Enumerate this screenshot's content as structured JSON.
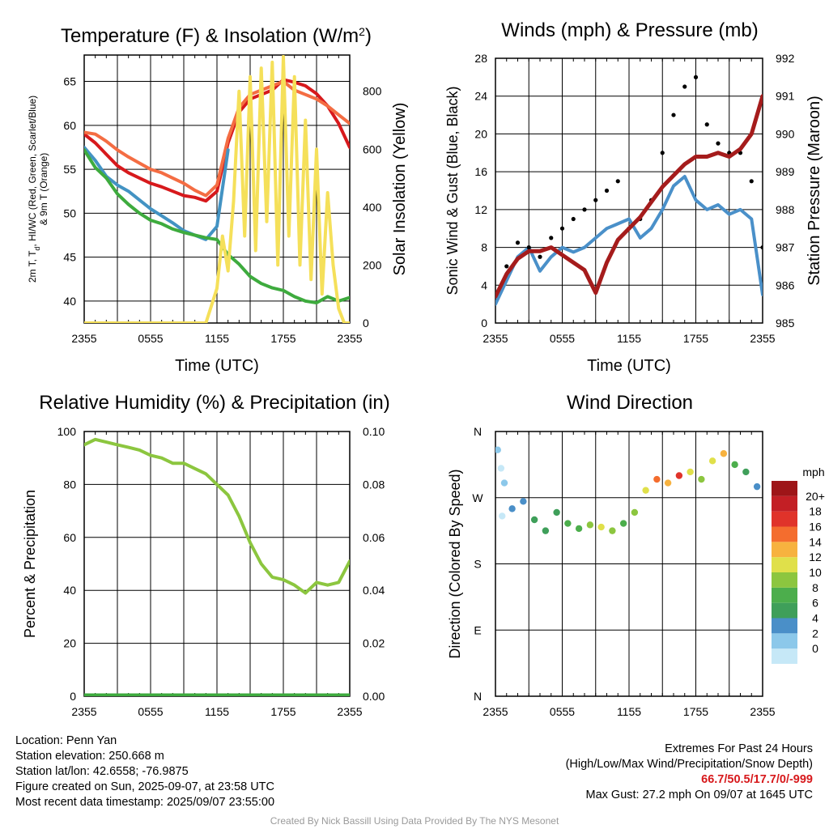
{
  "chart_data": [
    {
      "type": "line",
      "title": "Temperature (F) & Insolation (W/m²)",
      "xlabel": "Time (UTC)",
      "ylabel": "2m T, Td, HI/WC (Red, Green, Scarlet/Blue) & 9m T (Orange)",
      "y2label": "Solar Insolation (Yellow)",
      "x_ticks": [
        "2355",
        "0555",
        "1155",
        "1755",
        "2355"
      ],
      "xlim": [
        0,
        24
      ],
      "ylim": [
        37.5,
        68
      ],
      "y_ticks": [
        40,
        45,
        50,
        55,
        60,
        65
      ],
      "y2lim": [
        0,
        925
      ],
      "y2_ticks": [
        0,
        200,
        400,
        600,
        800
      ],
      "grid": true,
      "series": [
        {
          "color": "#d7191c",
          "axis": "left",
          "x": [
            0,
            1,
            2,
            3,
            4,
            5,
            6,
            7,
            8,
            9,
            10,
            11,
            12,
            13,
            14,
            15,
            16,
            17,
            18,
            19,
            20,
            21,
            22,
            23,
            24
          ],
          "y": [
            59,
            58,
            56.7,
            55.4,
            54.6,
            54,
            53.4,
            53,
            52.5,
            52,
            51.8,
            51.4,
            52.5,
            58,
            61.5,
            63,
            63.5,
            64,
            65.2,
            64.9,
            64.5,
            63.6,
            62.2,
            60.2,
            57.5
          ]
        },
        {
          "color": "#f46d43",
          "axis": "left",
          "x": [
            0,
            1,
            2,
            3,
            4,
            5,
            6,
            7,
            8,
            9,
            10,
            11,
            12,
            13,
            14,
            15,
            16,
            17,
            18,
            19,
            20,
            21,
            22,
            23,
            24
          ],
          "y": [
            59.2,
            59,
            58.2,
            57.2,
            56.4,
            55.7,
            55,
            54.6,
            54,
            53.4,
            52.6,
            52,
            53.2,
            58.5,
            62,
            63.5,
            64,
            64.5,
            65,
            64,
            63.5,
            63,
            62.2,
            61.2,
            60.2
          ]
        },
        {
          "color": "#4393c3",
          "axis": "left",
          "x": [
            0,
            1,
            2,
            3,
            4,
            5,
            6,
            7,
            8,
            9,
            10,
            11,
            12,
            13
          ],
          "y": [
            57.5,
            56,
            54.2,
            53.2,
            52.5,
            51.5,
            50.5,
            49.7,
            48.9,
            48,
            47.5,
            47,
            48.5,
            57.2
          ]
        },
        {
          "color": "#3eab3e",
          "axis": "left",
          "x": [
            0,
            1,
            2,
            3,
            4,
            5,
            6,
            7,
            8,
            9,
            10,
            11,
            12,
            13,
            14,
            15,
            16,
            17,
            18,
            19,
            20,
            21,
            22,
            23,
            24
          ],
          "y": [
            57.2,
            55.2,
            54,
            52.2,
            51,
            50,
            49.2,
            48.8,
            48.2,
            47.8,
            47.5,
            47.2,
            47,
            45.3,
            44.2,
            42.8,
            42,
            41.5,
            41.2,
            40.5,
            40,
            39.8,
            40.5,
            40,
            40.4
          ]
        },
        {
          "color": "#f5e05a",
          "axis": "right",
          "x": [
            0,
            11,
            11.5,
            12,
            12.5,
            13,
            13.5,
            14,
            14.5,
            15,
            15.5,
            16,
            16.5,
            17,
            17.5,
            18,
            18.5,
            19,
            19.5,
            20,
            20.5,
            21,
            21.5,
            22,
            22.5,
            23,
            23.5,
            24
          ],
          "y": [
            0,
            0,
            60,
            120,
            300,
            180,
            420,
            800,
            300,
            850,
            250,
            880,
            350,
            900,
            200,
            920,
            300,
            850,
            200,
            700,
            150,
            600,
            100,
            450,
            200,
            50,
            0,
            0
          ]
        }
      ]
    },
    {
      "type": "line",
      "title": "Winds (mph) & Pressure (mb)",
      "xlabel": "Time (UTC)",
      "ylabel": "Sonic Wind & Gust (Blue, Black)",
      "y2label": "Station Pressure (Maroon)",
      "x_ticks": [
        "2355",
        "0555",
        "1155",
        "1755",
        "2355"
      ],
      "xlim": [
        0,
        24
      ],
      "ylim": [
        0,
        28
      ],
      "y_ticks": [
        0,
        4,
        8,
        12,
        16,
        20,
        24,
        28
      ],
      "y2lim": [
        985,
        992
      ],
      "y2_ticks": [
        985,
        986,
        987,
        988,
        989,
        990,
        991,
        992
      ],
      "grid": true,
      "series": [
        {
          "color": "#4a90c9",
          "axis": "left",
          "x": [
            0,
            1,
            2,
            3,
            4,
            5,
            6,
            7,
            8,
            9,
            10,
            11,
            12,
            13,
            14,
            15,
            16,
            17,
            18,
            19,
            20,
            21,
            22,
            23,
            24
          ],
          "y": [
            2,
            4.5,
            7,
            8,
            5.5,
            7,
            8,
            7.5,
            8,
            9,
            10,
            10.5,
            11,
            9,
            10,
            12,
            14.5,
            15.5,
            13,
            12,
            12.5,
            11.5,
            12,
            11,
            3
          ]
        },
        {
          "color": "#000000",
          "axis": "left",
          "type": "scatter",
          "x": [
            0,
            1,
            2,
            3,
            4,
            5,
            6,
            7,
            8,
            9,
            10,
            11,
            12,
            13,
            14,
            15,
            16,
            17,
            18,
            19,
            20,
            21,
            22,
            23,
            24
          ],
          "y": [
            3,
            6,
            8.5,
            8,
            7,
            9,
            10,
            11,
            12,
            13,
            14,
            15,
            10,
            11,
            13,
            18,
            22,
            25,
            26,
            21,
            19,
            18,
            18,
            15,
            8
          ]
        },
        {
          "color": "#a51c1c",
          "axis": "right",
          "x": [
            0,
            1,
            2,
            3,
            4,
            5,
            6,
            7,
            8,
            9,
            10,
            11,
            12,
            13,
            14,
            15,
            16,
            17,
            18,
            19,
            20,
            21,
            22,
            23,
            24
          ],
          "y": [
            985.7,
            986.3,
            986.7,
            986.9,
            986.9,
            987,
            986.8,
            986.6,
            986.4,
            985.8,
            986.6,
            987.2,
            987.5,
            987.8,
            988.2,
            988.6,
            988.9,
            989.2,
            989.4,
            989.4,
            989.5,
            989.4,
            989.6,
            990,
            991
          ]
        }
      ]
    },
    {
      "type": "line",
      "title": "Relative Humidity (%) & Precipitation (in)",
      "ylabel": "Percent & Precipitation",
      "x_ticks": [
        "2355",
        "0555",
        "1155",
        "1755",
        "2355"
      ],
      "xlim": [
        0,
        24
      ],
      "ylim": [
        0,
        100
      ],
      "y_ticks": [
        0,
        20,
        40,
        60,
        80,
        100
      ],
      "y2lim": [
        0,
        0.1
      ],
      "y2_ticks": [
        "0.00",
        "0.02",
        "0.04",
        "0.06",
        "0.08",
        "0.10"
      ],
      "grid": true,
      "series": [
        {
          "color": "#8cc63f",
          "axis": "left",
          "x": [
            0,
            1,
            2,
            3,
            4,
            5,
            6,
            7,
            8,
            9,
            10,
            11,
            12,
            13,
            14,
            15,
            16,
            17,
            18,
            19,
            20,
            21,
            22,
            23,
            24
          ],
          "y": [
            95,
            97,
            96,
            95,
            94,
            93,
            91,
            90,
            88,
            88,
            86,
            84,
            80,
            76,
            68,
            58,
            50,
            45,
            44,
            42,
            39,
            43,
            42,
            43,
            51
          ]
        },
        {
          "color": "#3eab3e",
          "axis": "right",
          "x": [
            0,
            24
          ],
          "y": [
            0,
            0
          ]
        }
      ]
    },
    {
      "type": "scatter",
      "title": "Wind Direction",
      "ylabel": "Direction (Colored By Speed)",
      "x_ticks": [
        "2355",
        "0555",
        "1155",
        "1755",
        "2355"
      ],
      "xlim": [
        0,
        24
      ],
      "y_ticks": [
        "N",
        "E",
        "S",
        "W",
        "N"
      ],
      "ylim": [
        0,
        360
      ],
      "grid": true,
      "colorbar": {
        "title": "mph",
        "labels": [
          "0",
          "2",
          "4",
          "6",
          "8",
          "10",
          "12",
          "14",
          "16",
          "18",
          "20+"
        ],
        "colors": [
          "#c6e8f7",
          "#8cc8ea",
          "#4a8fc8",
          "#3f9f5a",
          "#4cae4c",
          "#8cc63f",
          "#e0e04a",
          "#f7b23f",
          "#f46d2e",
          "#e0332a",
          "#c31f25",
          "#9e1518"
        ]
      },
      "points": [
        {
          "x": 0.2,
          "y": 335,
          "s": 2
        },
        {
          "x": 0.5,
          "y": 310,
          "s": 1
        },
        {
          "x": 0.6,
          "y": 245,
          "s": 1
        },
        {
          "x": 0.8,
          "y": 290,
          "s": 2
        },
        {
          "x": 1.5,
          "y": 255,
          "s": 4
        },
        {
          "x": 2.5,
          "y": 265,
          "s": 5
        },
        {
          "x": 3.5,
          "y": 240,
          "s": 6
        },
        {
          "x": 4.5,
          "y": 225,
          "s": 7
        },
        {
          "x": 5.5,
          "y": 250,
          "s": 7
        },
        {
          "x": 6.5,
          "y": 235,
          "s": 8
        },
        {
          "x": 7.5,
          "y": 228,
          "s": 9
        },
        {
          "x": 8.5,
          "y": 233,
          "s": 10
        },
        {
          "x": 9.5,
          "y": 230,
          "s": 12
        },
        {
          "x": 10.5,
          "y": 225,
          "s": 11
        },
        {
          "x": 11.5,
          "y": 235,
          "s": 9
        },
        {
          "x": 12.5,
          "y": 250,
          "s": 10
        },
        {
          "x": 13.5,
          "y": 280,
          "s": 13
        },
        {
          "x": 14.5,
          "y": 295,
          "s": 17
        },
        {
          "x": 15.5,
          "y": 290,
          "s": 15
        },
        {
          "x": 16.5,
          "y": 300,
          "s": 19
        },
        {
          "x": 17.5,
          "y": 305,
          "s": 13
        },
        {
          "x": 18.5,
          "y": 295,
          "s": 10
        },
        {
          "x": 19.5,
          "y": 320,
          "s": 12
        },
        {
          "x": 20.5,
          "y": 330,
          "s": 14
        },
        {
          "x": 21.5,
          "y": 315,
          "s": 9
        },
        {
          "x": 22.5,
          "y": 305,
          "s": 6
        },
        {
          "x": 23.5,
          "y": 285,
          "s": 4
        }
      ]
    }
  ],
  "info": {
    "location": "Location: Penn Yan",
    "elevation": "Station elevation: 250.668 m",
    "latlon": "Station lat/lon: 42.6558; -76.9875",
    "created": "Figure created on Sun, 2025-09-07, at 23:58 UTC",
    "recent": "Most recent data timestamp: 2025/09/07 23:55:00"
  },
  "extremes": {
    "heading": "Extremes For Past 24 Hours",
    "legend": "(High/Low/Max Wind/Precipitation/Snow Depth)",
    "values": "66.7/50.5/17.7/0/-999",
    "gust": "Max Gust: 27.2 mph On 09/07 at 1645 UTC"
  },
  "credit": "Created By Nick Bassill Using Data Provided By The NYS Mesonet"
}
